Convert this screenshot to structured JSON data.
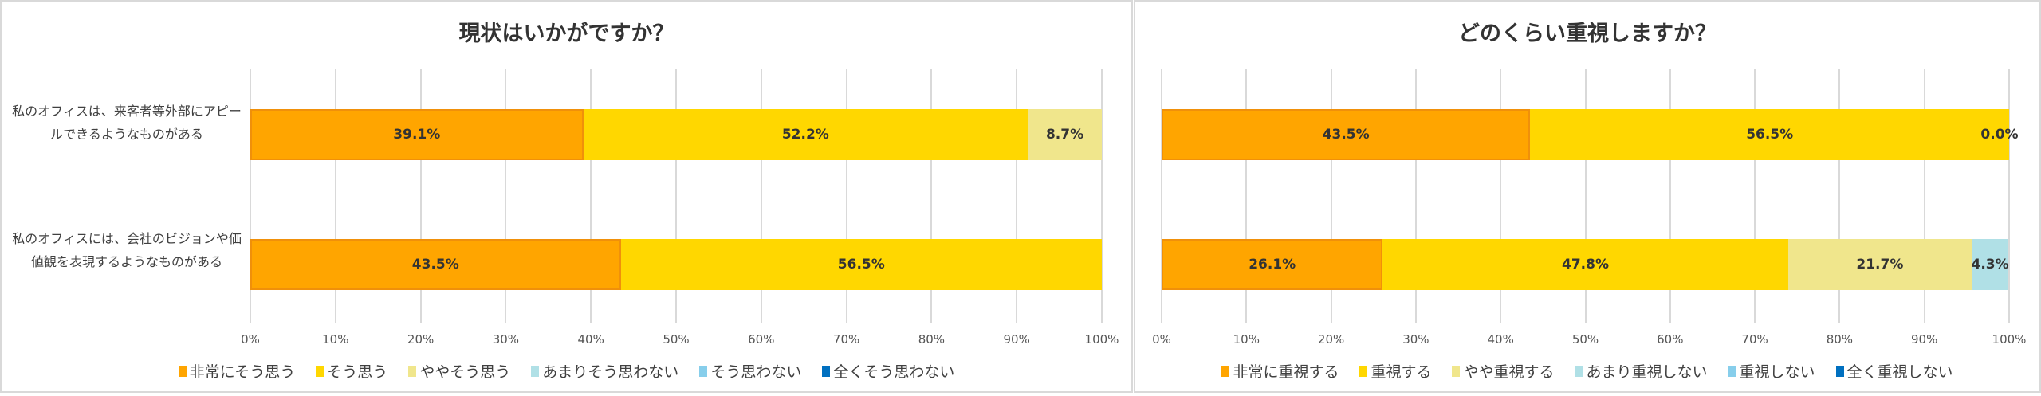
{
  "chart_data": [
    {
      "type": "bar",
      "stacked": true,
      "orientation": "horizontal",
      "title": "現状はいかがですか？",
      "categories": [
        "私のオフィスは、来客者等外部にアピールできるようなものがある",
        "私のオフィスには、会社のビジョンや価値観を表現するようなものがある"
      ],
      "series": [
        {
          "name": "非常にそう思う",
          "color": "#FFA500",
          "values": [
            39.1,
            43.5
          ]
        },
        {
          "name": "そう思う",
          "color": "#FFD700",
          "values": [
            52.2,
            56.5
          ]
        },
        {
          "name": "ややそう思う",
          "color": "#F0E68C",
          "values": [
            8.7,
            0
          ]
        },
        {
          "name": "あまりそう思わない",
          "color": "#B0E0E6",
          "values": [
            0,
            0
          ]
        },
        {
          "name": "そう思わない",
          "color": "#87CEEB",
          "values": [
            0,
            0
          ]
        },
        {
          "name": "全くそう思わない",
          "color": "#0070C0",
          "values": [
            0,
            0
          ]
        }
      ],
      "data_labels": [
        [
          "39.1%",
          "52.2%",
          "8.7%"
        ],
        [
          "43.5%",
          "56.5%"
        ]
      ],
      "xlim": [
        0,
        100
      ],
      "xticks": [
        "0%",
        "10%",
        "20%",
        "30%",
        "40%",
        "50%",
        "60%",
        "70%",
        "80%",
        "90%",
        "100%"
      ],
      "grid": true,
      "legend": "bottom"
    },
    {
      "type": "bar",
      "stacked": true,
      "orientation": "horizontal",
      "title": "どのくらい重視しますか？",
      "categories": [
        "",
        ""
      ],
      "series": [
        {
          "name": "非常に重視する",
          "color": "#FFA500",
          "values": [
            43.5,
            26.1
          ]
        },
        {
          "name": "重視する",
          "color": "#FFD700",
          "values": [
            56.5,
            47.8
          ]
        },
        {
          "name": "やや重視する",
          "color": "#F0E68C",
          "values": [
            0.0,
            21.7
          ]
        },
        {
          "name": "あまり重視しない",
          "color": "#B0E0E6",
          "values": [
            0,
            4.3
          ]
        },
        {
          "name": "重視しない",
          "color": "#87CEEB",
          "values": [
            0,
            0
          ]
        },
        {
          "name": "全く重視しない",
          "color": "#0070C0",
          "values": [
            0,
            0
          ]
        }
      ],
      "data_labels": [
        [
          "43.5%",
          "56.5%",
          "0.0%"
        ],
        [
          "26.1%",
          "47.8%",
          "21.7%",
          "4.3%"
        ]
      ],
      "xlim": [
        0,
        100
      ],
      "xticks": [
        "0%",
        "10%",
        "20%",
        "30%",
        "40%",
        "50%",
        "60%",
        "70%",
        "80%",
        "90%",
        "100%"
      ],
      "grid": true,
      "legend": "bottom"
    }
  ]
}
